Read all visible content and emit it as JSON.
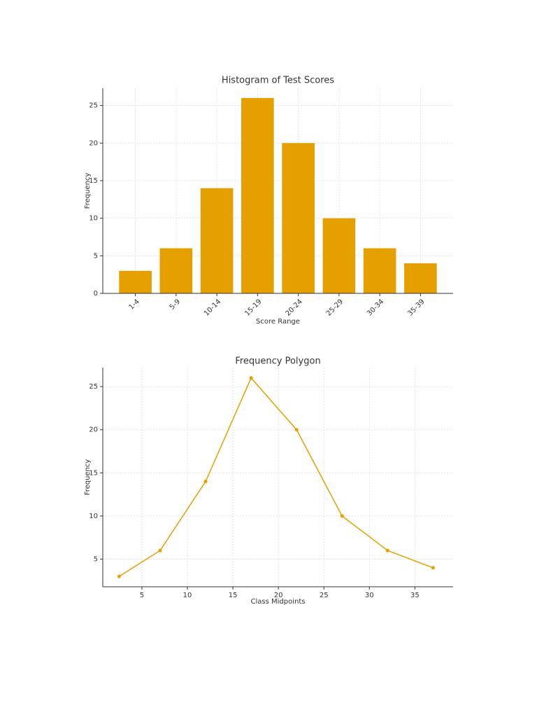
{
  "chart_data": [
    {
      "type": "bar",
      "title": "Histogram of Test Scores",
      "x_label": "Score Range",
      "y_label": "Frequency",
      "categories": [
        "1-4",
        "5-9",
        "10-14",
        "15-19",
        "20-24",
        "25-29",
        "30-34",
        "35-39"
      ],
      "values": [
        3,
        6,
        14,
        26,
        20,
        10,
        6,
        4
      ],
      "color": "#e5a000",
      "ylim": [
        0,
        27.3
      ],
      "yticks": [
        0,
        5,
        10,
        15,
        20,
        25
      ],
      "grid": true
    },
    {
      "type": "line",
      "title": "Frequency Polygon",
      "x_label": "Class Midpoints",
      "y_label": "Frequency",
      "x": [
        2.5,
        7,
        12,
        17,
        22,
        27,
        32,
        37
      ],
      "values": [
        3,
        6,
        14,
        26,
        20,
        10,
        6,
        4
      ],
      "color": "#e5a000",
      "xlim": [
        0.7,
        39.2
      ],
      "xticks": [
        5,
        10,
        15,
        20,
        25,
        30,
        35
      ],
      "ylim": [
        1.8,
        27.2
      ],
      "yticks": [
        5,
        10,
        15,
        20,
        25
      ],
      "grid": true
    }
  ]
}
